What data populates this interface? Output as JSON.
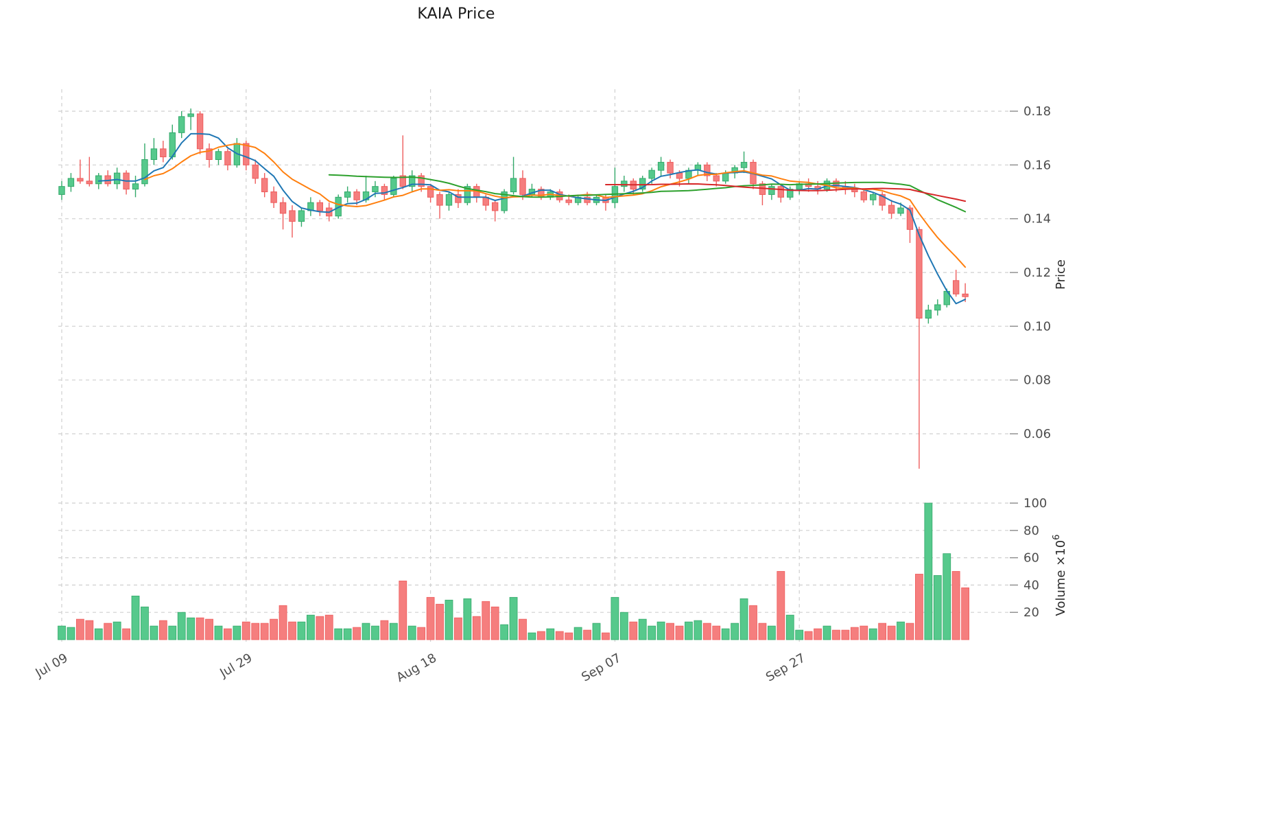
{
  "title": "KAIA Price",
  "y_axis": {
    "label": "Price",
    "ticks": [
      "0.18",
      "0.16",
      "0.14",
      "0.12",
      "0.10",
      "0.08",
      "0.06"
    ]
  },
  "volume_axis": {
    "label_base": "Volume ×10",
    "label_exp": "6",
    "ticks": [
      "100",
      "80",
      "60",
      "40",
      "20"
    ]
  },
  "x_axis": {
    "ticks": [
      {
        "i": 0,
        "label": "Jul 09"
      },
      {
        "i": 20,
        "label": "Jul 29"
      },
      {
        "i": 40,
        "label": "Aug 18"
      },
      {
        "i": 60,
        "label": "Sep 07"
      },
      {
        "i": 80,
        "label": "Sep 27"
      }
    ]
  },
  "colors": {
    "up": "#56c98c",
    "down": "#f57e7e",
    "up_edge": "#33a96a",
    "down_edge": "#ee5c5c",
    "grid": "#cfcfcf",
    "tick_text": "#4d4d4d",
    "axis_label_text": "#2b2b2b",
    "ma": [
      "#1f77b4",
      "#ff7f0e",
      "#2ca02c",
      "#d62728"
    ]
  },
  "chart_data": {
    "type": "candlestick",
    "title": "KAIA Price",
    "ylabel": "Price",
    "ylabel2": "Volume ×10⁶",
    "price_ylim": [
      0.045,
      0.188
    ],
    "volume_ylim": [
      0,
      105
    ],
    "grid": "dashed",
    "moving_averages": [
      {
        "name": "MA5",
        "window": 5,
        "color": "#1f77b4"
      },
      {
        "name": "MA10",
        "window": 10,
        "color": "#ff7f0e"
      },
      {
        "name": "MA30",
        "window": 30,
        "color": "#2ca02c"
      },
      {
        "name": "MA60",
        "window": 60,
        "color": "#d62728"
      }
    ],
    "columns": [
      "date",
      "open",
      "high",
      "low",
      "close",
      "volume_millions"
    ],
    "rows": [
      [
        "Jul 09",
        0.149,
        0.154,
        0.147,
        0.152,
        10
      ],
      [
        "Jul 10",
        0.152,
        0.157,
        0.15,
        0.155,
        9
      ],
      [
        "Jul 11",
        0.155,
        0.162,
        0.153,
        0.154,
        15
      ],
      [
        "Jul 12",
        0.154,
        0.163,
        0.152,
        0.153,
        14
      ],
      [
        "Jul 13",
        0.153,
        0.157,
        0.151,
        0.156,
        8
      ],
      [
        "Jul 14",
        0.156,
        0.158,
        0.152,
        0.153,
        12
      ],
      [
        "Jul 15",
        0.153,
        0.159,
        0.151,
        0.157,
        13
      ],
      [
        "Jul 16",
        0.157,
        0.158,
        0.149,
        0.151,
        8
      ],
      [
        "Jul 17",
        0.151,
        0.156,
        0.148,
        0.153,
        32
      ],
      [
        "Jul 18",
        0.153,
        0.168,
        0.152,
        0.162,
        24
      ],
      [
        "Jul 19",
        0.162,
        0.17,
        0.16,
        0.166,
        10
      ],
      [
        "Jul 20",
        0.166,
        0.169,
        0.161,
        0.163,
        14
      ],
      [
        "Jul 21",
        0.163,
        0.175,
        0.162,
        0.172,
        10
      ],
      [
        "Jul 22",
        0.172,
        0.18,
        0.17,
        0.178,
        20
      ],
      [
        "Jul 23",
        0.178,
        0.181,
        0.173,
        0.179,
        16
      ],
      [
        "Jul 24",
        0.179,
        0.18,
        0.164,
        0.166,
        16
      ],
      [
        "Jul 25",
        0.166,
        0.168,
        0.159,
        0.162,
        15
      ],
      [
        "Jul 26",
        0.162,
        0.166,
        0.16,
        0.165,
        10
      ],
      [
        "Jul 27",
        0.165,
        0.166,
        0.158,
        0.16,
        8
      ],
      [
        "Jul 28",
        0.16,
        0.17,
        0.159,
        0.168,
        10
      ],
      [
        "Jul 29",
        0.168,
        0.169,
        0.158,
        0.16,
        13
      ],
      [
        "Jul 30",
        0.16,
        0.162,
        0.153,
        0.155,
        12
      ],
      [
        "Jul 31",
        0.155,
        0.157,
        0.148,
        0.15,
        12
      ],
      [
        "Aug 01",
        0.15,
        0.152,
        0.144,
        0.146,
        15
      ],
      [
        "Aug 02",
        0.146,
        0.148,
        0.136,
        0.142,
        25
      ],
      [
        "Aug 03",
        0.143,
        0.145,
        0.133,
        0.139,
        13
      ],
      [
        "Aug 04",
        0.139,
        0.144,
        0.137,
        0.143,
        13
      ],
      [
        "Aug 05",
        0.143,
        0.148,
        0.141,
        0.146,
        18
      ],
      [
        "Aug 06",
        0.146,
        0.147,
        0.141,
        0.143,
        17
      ],
      [
        "Aug 07",
        0.144,
        0.146,
        0.139,
        0.141,
        18
      ],
      [
        "Aug 08",
        0.141,
        0.149,
        0.14,
        0.148,
        8
      ],
      [
        "Aug 09",
        0.148,
        0.152,
        0.146,
        0.15,
        8
      ],
      [
        "Aug 10",
        0.15,
        0.151,
        0.145,
        0.147,
        9
      ],
      [
        "Aug 11",
        0.147,
        0.156,
        0.146,
        0.15,
        12
      ],
      [
        "Aug 12",
        0.15,
        0.154,
        0.148,
        0.152,
        10
      ],
      [
        "Aug 13",
        0.152,
        0.153,
        0.147,
        0.149,
        14
      ],
      [
        "Aug 14",
        0.149,
        0.156,
        0.148,
        0.155,
        12
      ],
      [
        "Aug 15",
        0.156,
        0.171,
        0.151,
        0.152,
        43
      ],
      [
        "Aug 16",
        0.152,
        0.158,
        0.15,
        0.156,
        10
      ],
      [
        "Aug 17",
        0.156,
        0.157,
        0.15,
        0.152,
        9
      ],
      [
        "Aug 18",
        0.152,
        0.153,
        0.146,
        0.148,
        31
      ],
      [
        "Aug 19",
        0.149,
        0.15,
        0.14,
        0.145,
        26
      ],
      [
        "Aug 20",
        0.145,
        0.15,
        0.143,
        0.149,
        29
      ],
      [
        "Aug 21",
        0.149,
        0.151,
        0.144,
        0.146,
        16
      ],
      [
        "Aug 22",
        0.146,
        0.153,
        0.145,
        0.152,
        30
      ],
      [
        "Aug 23",
        0.152,
        0.153,
        0.146,
        0.148,
        17
      ],
      [
        "Aug 24",
        0.148,
        0.149,
        0.143,
        0.145,
        28
      ],
      [
        "Aug 25",
        0.146,
        0.147,
        0.139,
        0.143,
        24
      ],
      [
        "Aug 26",
        0.143,
        0.151,
        0.142,
        0.15,
        11
      ],
      [
        "Aug 27",
        0.15,
        0.163,
        0.149,
        0.155,
        31
      ],
      [
        "Aug 28",
        0.155,
        0.158,
        0.147,
        0.149,
        15
      ],
      [
        "Aug 29",
        0.149,
        0.153,
        0.148,
        0.151,
        5
      ],
      [
        "Aug 30",
        0.151,
        0.152,
        0.147,
        0.148,
        6
      ],
      [
        "Aug 31",
        0.148,
        0.151,
        0.147,
        0.15,
        8
      ],
      [
        "Sep 01",
        0.15,
        0.151,
        0.146,
        0.147,
        6
      ],
      [
        "Sep 02",
        0.147,
        0.149,
        0.145,
        0.146,
        5
      ],
      [
        "Sep 03",
        0.146,
        0.149,
        0.145,
        0.148,
        9
      ],
      [
        "Sep 04",
        0.148,
        0.15,
        0.145,
        0.146,
        7
      ],
      [
        "Sep 05",
        0.146,
        0.149,
        0.145,
        0.148,
        12
      ],
      [
        "Sep 06",
        0.148,
        0.149,
        0.143,
        0.146,
        5
      ],
      [
        "Sep 07",
        0.146,
        0.159,
        0.144,
        0.152,
        31
      ],
      [
        "Sep 08",
        0.152,
        0.156,
        0.15,
        0.154,
        20
      ],
      [
        "Sep 09",
        0.154,
        0.155,
        0.149,
        0.151,
        13
      ],
      [
        "Sep 10",
        0.151,
        0.156,
        0.15,
        0.155,
        15
      ],
      [
        "Sep 11",
        0.155,
        0.159,
        0.153,
        0.158,
        10
      ],
      [
        "Sep 12",
        0.158,
        0.163,
        0.156,
        0.161,
        13
      ],
      [
        "Sep 13",
        0.161,
        0.162,
        0.155,
        0.157,
        12
      ],
      [
        "Sep 14",
        0.157,
        0.158,
        0.152,
        0.155,
        10
      ],
      [
        "Sep 15",
        0.155,
        0.159,
        0.153,
        0.158,
        13
      ],
      [
        "Sep 16",
        0.158,
        0.161,
        0.156,
        0.16,
        14
      ],
      [
        "Sep 17",
        0.16,
        0.161,
        0.154,
        0.156,
        12
      ],
      [
        "Sep 18",
        0.156,
        0.157,
        0.152,
        0.154,
        10
      ],
      [
        "Sep 19",
        0.154,
        0.158,
        0.153,
        0.157,
        8
      ],
      [
        "Sep 20",
        0.157,
        0.16,
        0.155,
        0.159,
        12
      ],
      [
        "Sep 21",
        0.159,
        0.165,
        0.157,
        0.161,
        30
      ],
      [
        "Sep 22",
        0.161,
        0.162,
        0.151,
        0.153,
        25
      ],
      [
        "Sep 23",
        0.153,
        0.154,
        0.145,
        0.149,
        12
      ],
      [
        "Sep 24",
        0.149,
        0.153,
        0.147,
        0.152,
        10
      ],
      [
        "Sep 25",
        0.152,
        0.153,
        0.146,
        0.148,
        50
      ],
      [
        "Sep 26",
        0.148,
        0.152,
        0.147,
        0.151,
        18
      ],
      [
        "Sep 27",
        0.151,
        0.154,
        0.149,
        0.153,
        7
      ],
      [
        "Sep 28",
        0.153,
        0.155,
        0.15,
        0.152,
        6
      ],
      [
        "Sep 29",
        0.152,
        0.154,
        0.149,
        0.151,
        8
      ],
      [
        "Sep 30",
        0.151,
        0.155,
        0.15,
        0.154,
        10
      ],
      [
        "Oct 01",
        0.154,
        0.155,
        0.15,
        0.152,
        7
      ],
      [
        "Oct 02",
        0.152,
        0.154,
        0.149,
        0.151,
        7
      ],
      [
        "Oct 03",
        0.151,
        0.153,
        0.148,
        0.15,
        9
      ],
      [
        "Oct 04",
        0.15,
        0.151,
        0.146,
        0.147,
        10
      ],
      [
        "Oct 05",
        0.147,
        0.15,
        0.145,
        0.149,
        8
      ],
      [
        "Oct 06",
        0.149,
        0.15,
        0.143,
        0.145,
        12
      ],
      [
        "Oct 07",
        0.145,
        0.147,
        0.14,
        0.142,
        10
      ],
      [
        "Oct 08",
        0.142,
        0.146,
        0.141,
        0.144,
        13
      ],
      [
        "Oct 09",
        0.144,
        0.145,
        0.131,
        0.136,
        12
      ],
      [
        "Oct 10",
        0.136,
        0.137,
        0.047,
        0.103,
        48
      ],
      [
        "Oct 11",
        0.103,
        0.108,
        0.101,
        0.106,
        100
      ],
      [
        "Oct 12",
        0.106,
        0.11,
        0.104,
        0.108,
        47
      ],
      [
        "Oct 13",
        0.108,
        0.114,
        0.107,
        0.113,
        63
      ],
      [
        "Oct 14",
        0.117,
        0.121,
        0.111,
        0.112,
        50
      ],
      [
        "Oct 15",
        0.112,
        0.116,
        0.109,
        0.111,
        38
      ]
    ]
  }
}
